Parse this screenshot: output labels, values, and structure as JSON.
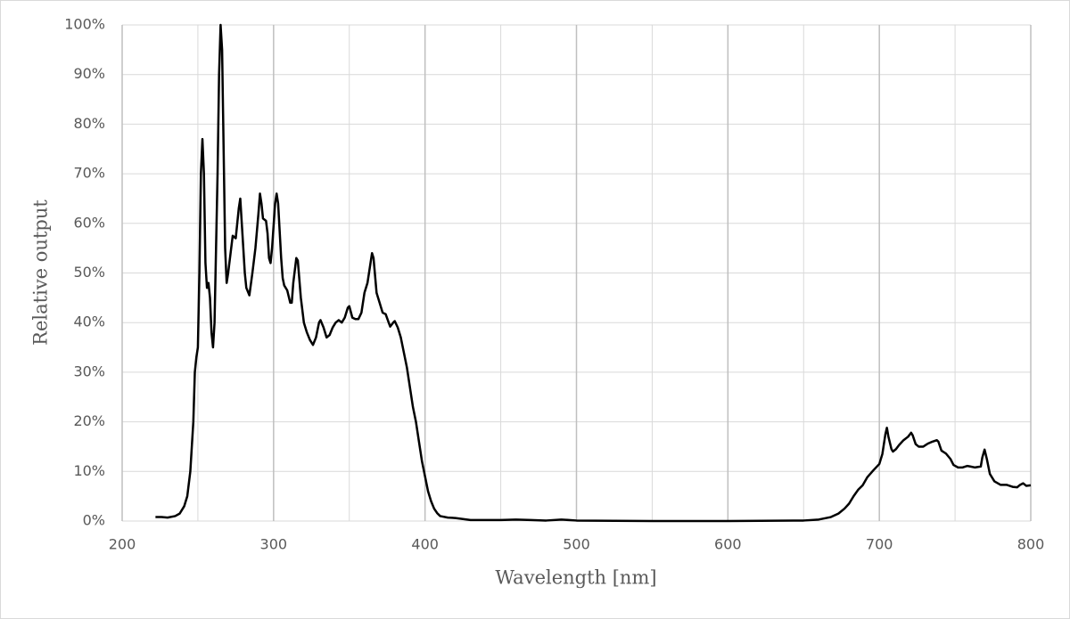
{
  "chart_data": {
    "type": "line",
    "x_label": "Wavelength [nm]",
    "y_label": "Relative output",
    "xlim": [
      200,
      800
    ],
    "xticks": [
      200,
      300,
      400,
      500,
      600,
      700,
      800
    ],
    "xminorticks": [
      250,
      350,
      450,
      550,
      650,
      750
    ],
    "ylim": [
      0,
      100
    ],
    "yticks": [
      {
        "value": 0,
        "label": "0%"
      },
      {
        "value": 10,
        "label": "10%"
      },
      {
        "value": 20,
        "label": "20%"
      },
      {
        "value": 30,
        "label": "30%"
      },
      {
        "value": 40,
        "label": "40%"
      },
      {
        "value": 50,
        "label": "50%"
      },
      {
        "value": 60,
        "label": "60%"
      },
      {
        "value": 70,
        "label": "70%"
      },
      {
        "value": 80,
        "label": "80%"
      },
      {
        "value": 90,
        "label": "90%"
      },
      {
        "value": 100,
        "label": "100%"
      }
    ],
    "grid": true,
    "color": "#000000",
    "x": [
      222,
      226,
      230,
      235,
      238,
      241,
      243,
      245,
      247,
      248,
      249,
      250,
      251,
      252,
      253,
      254,
      255,
      256,
      257,
      258,
      259,
      260,
      261,
      262,
      263,
      264,
      265,
      266,
      267,
      268,
      269,
      270,
      272,
      273,
      275,
      277,
      278,
      279,
      281,
      282,
      284,
      286,
      288,
      290,
      291,
      292,
      293,
      295,
      296,
      297,
      298,
      299,
      301,
      302,
      303,
      305,
      306,
      307,
      309,
      311,
      312,
      313,
      315,
      316,
      318,
      320,
      322,
      324,
      326,
      328,
      330,
      331,
      333,
      335,
      337,
      339,
      341,
      343,
      345,
      347,
      349,
      350,
      352,
      354,
      356,
      358,
      360,
      362,
      364,
      365,
      366,
      368,
      370,
      372,
      374,
      376,
      377,
      379,
      380,
      382,
      384,
      386,
      388,
      390,
      392,
      394,
      396,
      398,
      400,
      402,
      404,
      406,
      408,
      410,
      415,
      420,
      425,
      430,
      440,
      450,
      460,
      470,
      480,
      490,
      500,
      550,
      600,
      650,
      660,
      668,
      673,
      677,
      680,
      683,
      686,
      689,
      692,
      696,
      700,
      702,
      704,
      705,
      706,
      708,
      709,
      711,
      713,
      716,
      719,
      721,
      722,
      724,
      726,
      729,
      732,
      735,
      738,
      739,
      741,
      744,
      747,
      749,
      752,
      755,
      758,
      760,
      763,
      767,
      768,
      769.5,
      771,
      773,
      776,
      780,
      784,
      788,
      791,
      793,
      795,
      797,
      800
    ],
    "values": [
      0.8,
      0.8,
      0.7,
      1.0,
      1.5,
      3,
      5,
      10,
      20,
      30,
      33,
      35,
      50,
      70,
      77,
      70,
      52,
      47,
      48,
      45,
      38,
      35,
      40,
      55,
      70,
      90,
      100,
      95,
      75,
      55,
      48,
      50,
      55,
      57.5,
      57,
      63,
      65,
      60,
      50,
      47,
      45.5,
      50,
      55,
      62,
      66,
      64,
      61,
      60.5,
      58,
      53,
      52,
      55,
      64,
      66,
      64,
      53,
      49,
      47.5,
      46.5,
      44,
      44,
      48,
      53,
      52.5,
      45,
      40,
      38,
      36.5,
      35.5,
      37,
      40,
      40.5,
      39,
      37,
      37.5,
      39,
      40,
      40.5,
      40,
      41,
      43,
      43.3,
      41,
      40.7,
      40.7,
      42,
      46,
      48,
      52,
      54,
      53,
      46,
      44,
      42,
      41.7,
      40,
      39.2,
      40,
      40.3,
      39,
      37,
      34,
      31,
      27,
      23,
      20,
      16,
      12,
      9,
      6,
      4,
      2.5,
      1.6,
      1,
      0.7,
      0.6,
      0.4,
      0.2,
      0.2,
      0.2,
      0.3,
      0.2,
      0.1,
      0.3,
      0.1,
      0,
      0,
      0.1,
      0.3,
      0.8,
      1.5,
      2.5,
      3.5,
      5,
      6.3,
      7.2,
      8.8,
      10.2,
      11.5,
      13.5,
      17.5,
      18.8,
      17,
      14.5,
      14,
      14.5,
      15.3,
      16.3,
      17,
      17.8,
      17.3,
      15.5,
      15,
      15,
      15.6,
      16,
      16.3,
      16,
      14.2,
      13.6,
      12.5,
      11.3,
      10.8,
      10.8,
      11.1,
      11,
      10.8,
      11,
      12.8,
      14.4,
      12.5,
      9.5,
      8,
      7.3,
      7.3,
      6.9,
      6.8,
      7.3,
      7.6,
      7.1,
      7.2
    ]
  }
}
